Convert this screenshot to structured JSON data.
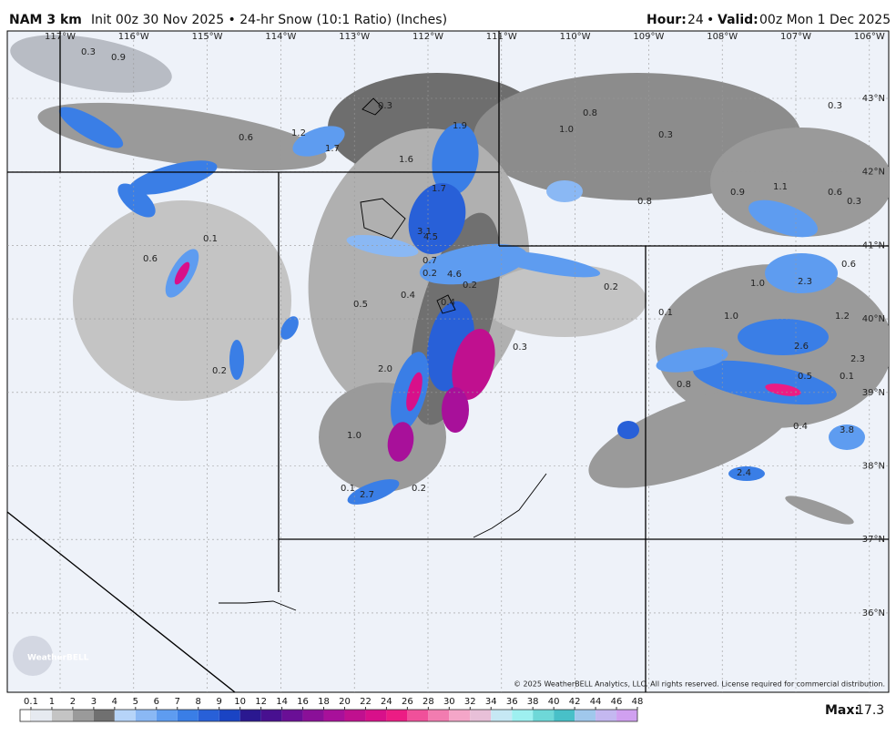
{
  "header": {
    "model": "NAM 3 km",
    "description": "Init 00z 30 Nov 2025 • 24-hr Snow (10:1 Ratio) (Inches)",
    "hour_label": "Hour:",
    "hour": "24",
    "separator": "•",
    "valid_label": "Valid:",
    "valid": "00z Mon 1 Dec 2025"
  },
  "map": {
    "longitude_labels": [
      "117°W",
      "116°W",
      "115°W",
      "114°W",
      "113°W",
      "112°W",
      "111°W",
      "110°W",
      "109°W",
      "108°W",
      "107°W",
      "106°W"
    ],
    "latitude_labels": [
      "43°N",
      "42°N",
      "41°N",
      "40°N",
      "39°N",
      "38°N",
      "37°N",
      "36°N"
    ],
    "point_labels": [
      "0.3",
      "0.9",
      "0.6",
      "1.2",
      "1.7",
      "0.3",
      "1.9",
      "1.6",
      "1.7",
      "1.0",
      "0.8",
      "0.3",
      "0.3",
      "0.8",
      "0.9",
      "1.1",
      "0.6",
      "0.3",
      "0.1",
      "0.6",
      "3.1",
      "4.5",
      "0.7",
      "0.2",
      "4.6",
      "0.2",
      "0.4",
      "0.5",
      "0.4",
      "0.2",
      "0.1",
      "1.0",
      "2.3",
      "0.6",
      "1.0",
      "1.2",
      "0.3",
      "2.6",
      "2.3",
      "0.2",
      "2.0",
      "0.5",
      "0.1",
      "0.8",
      "0.4",
      "3.8",
      "1.0",
      "0.1",
      "2.7",
      "0.2",
      "2.4"
    ],
    "logo": "WeatherBELL",
    "copyright": "© 2025 WeatherBELL Analytics, LLC. All rights reserved. License required for commercial distribution."
  },
  "colorbar": {
    "ticks": [
      0.1,
      1,
      2,
      3,
      4,
      5,
      6,
      7,
      8,
      9,
      10,
      12,
      14,
      16,
      18,
      20,
      22,
      24,
      26,
      28,
      30,
      32,
      34,
      36,
      38,
      40,
      42,
      44,
      46,
      48
    ],
    "colors": [
      "#e6eaf0",
      "#c4c4c4",
      "#9a9a9a",
      "#707070",
      "#b6d4f8",
      "#8ab8f4",
      "#5e9cf0",
      "#3a7ee6",
      "#2860d8",
      "#1a44c4",
      "#2a1890",
      "#481090",
      "#6a0f96",
      "#8a1098",
      "#a8109a",
      "#c0108f",
      "#d8108a",
      "#ec1c84",
      "#f0509a",
      "#f27cb0",
      "#f4a6c8",
      "#e8c0d8",
      "#c6e8f4",
      "#9ef0f0",
      "#6ed8d8",
      "#48c0c8",
      "#a0c8ec",
      "#c4b8f0",
      "#d0a0f0"
    ],
    "max_label": "Max:",
    "max_value": 17.3
  }
}
